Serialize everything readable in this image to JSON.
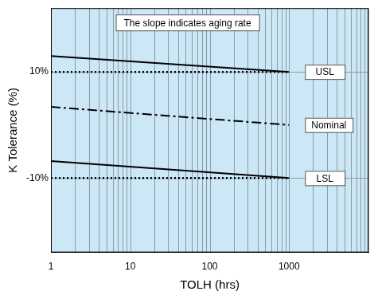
{
  "chart_data": {
    "type": "line",
    "annotations": [
      "The slope indicates aging rate"
    ],
    "x_label": "TOLH (hrs)",
    "y_label": "K Tolerance (%)",
    "log": "x",
    "grid": true,
    "legend": false,
    "xlim": [
      1,
      10000
    ],
    "xticks": [
      1,
      10,
      100,
      1000
    ],
    "ylim": [
      -24,
      22
    ],
    "yticks": [
      {
        "value": -10,
        "label": "-10%"
      },
      {
        "value": 10,
        "label": "10%"
      }
    ],
    "x": [
      1,
      1000
    ],
    "series": [
      {
        "color": "#000000",
        "line_style": "solid",
        "values": [
          13,
          10
        ]
      },
      {
        "name": "USL",
        "color": "#000000",
        "line_style": "dotted",
        "values": [
          10,
          10
        ]
      },
      {
        "name": "Nominal",
        "color": "#000000",
        "line_style": "dashdot",
        "values": [
          3.4,
          0
        ]
      },
      {
        "color": "#000000",
        "line_style": "solid",
        "values": [
          -6.8,
          -10
        ]
      },
      {
        "name": "LSL",
        "color": "#000000",
        "line_style": "dotted",
        "values": [
          -10,
          -10
        ]
      }
    ]
  }
}
